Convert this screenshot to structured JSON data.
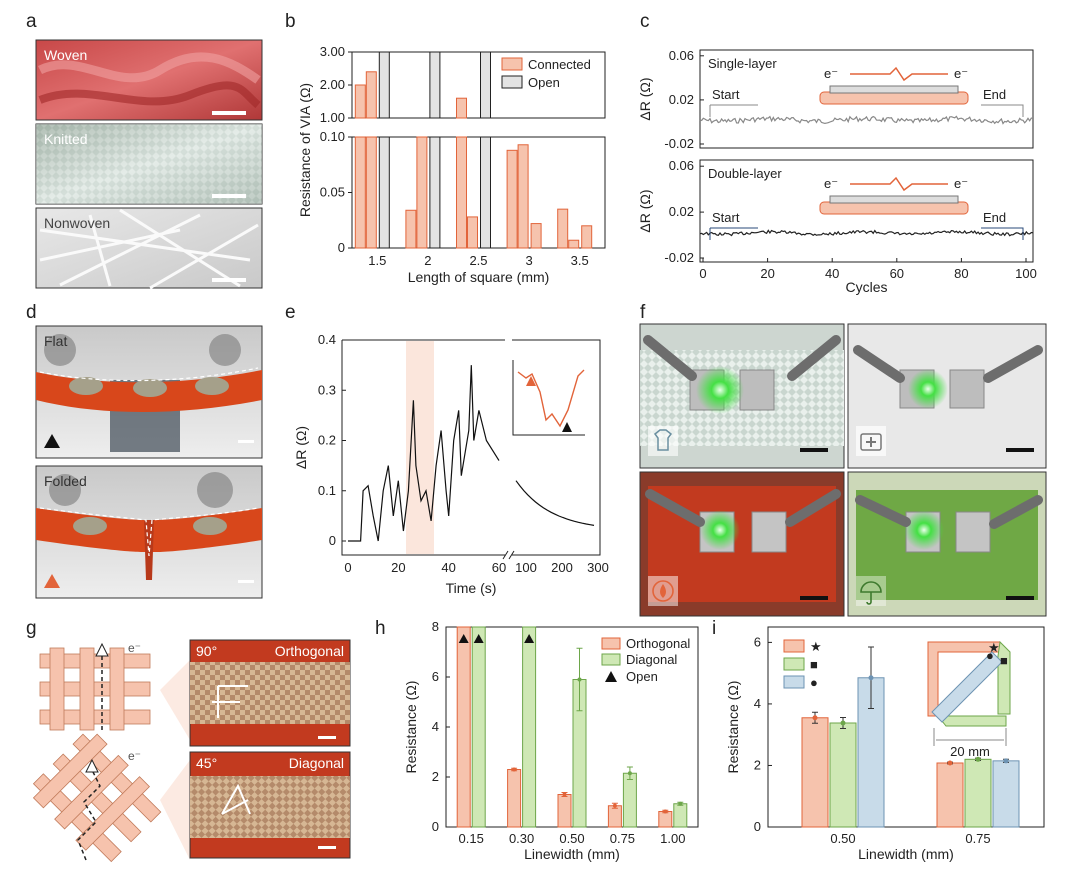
{
  "panel_labels": [
    "a",
    "b",
    "c",
    "d",
    "e",
    "f",
    "g",
    "h",
    "i"
  ],
  "panel_a": {
    "photos": [
      "Woven",
      "Knitted",
      "Nonwoven"
    ]
  },
  "panel_d": {
    "photos": [
      "Flat",
      "Folded"
    ]
  },
  "panel_g": {
    "angles": [
      "90°",
      "45°"
    ],
    "photos": [
      "Orthogonal",
      "Diagonal"
    ],
    "electron": "e⁻"
  },
  "colors": {
    "orange": "#f6c3ad",
    "orange_edge": "#e2643a",
    "green": "#cfe8b5",
    "green_edge": "#6da64a",
    "blue": "#c8dbe9",
    "blue_edge": "#6d93b3",
    "gray": "#e3e3e3"
  },
  "chart_data": [
    {
      "id": "b",
      "type": "bar",
      "categories": [
        "1.5",
        "2",
        "2.5",
        "3",
        "3.5"
      ],
      "series": [
        {
          "name": "Connected",
          "values": [
            [
              2.0,
              2.4
            ],
            [
              0.034,
              1.0
            ],
            [
              1.6,
              0.028
            ],
            [
              0.088,
              0.093
            ],
            [
              0.035,
              0.007
            ]
          ]
        },
        {
          "name": "Open",
          "values": [
            3.0,
            3.0,
            3.0,
            null,
            null
          ]
        }
      ],
      "extra_connected": [
        null,
        null,
        null,
        0.022,
        0.02
      ],
      "ylabel": "Resistance of VIA (Ω)",
      "xlabel": "Length of square (mm)",
      "yticks_low": [
        "0",
        "0.05",
        "0.10"
      ],
      "yticks_high": [
        "1.00",
        "2.00",
        "3.00"
      ],
      "axis_break": true,
      "legend": "top-right"
    },
    {
      "id": "c",
      "type": "line",
      "subplots": [
        {
          "label": "Single-layer",
          "start": "Start",
          "end": "End",
          "ylim": [
            -0.02,
            0.06
          ]
        },
        {
          "label": "Double-layer",
          "start": "Start",
          "end": "End",
          "ylim": [
            -0.02,
            0.06
          ]
        }
      ],
      "ylabel": "ΔR (Ω)",
      "xlabel": "Cycles",
      "yticks": [
        "0.06",
        "0.02",
        "-0.02"
      ],
      "xticks": [
        "0",
        "20",
        "40",
        "60",
        "80",
        "100"
      ],
      "electron": "e⁻"
    },
    {
      "id": "e",
      "type": "line",
      "ylabel": "ΔR (Ω)",
      "xlabel": "Time (s)",
      "yticks": [
        "0",
        "0.1",
        "0.2",
        "0.3",
        "0.4"
      ],
      "xticks_left": [
        "0",
        "10",
        "20",
        "30",
        "40",
        "50",
        "60"
      ],
      "xticks_right": [
        "100",
        "200",
        "300"
      ],
      "axis_break": true
    },
    {
      "id": "h",
      "type": "bar",
      "categories": [
        "0.15",
        "0.30",
        "0.50",
        "0.75",
        "1.00"
      ],
      "series": [
        {
          "name": "Orthogonal",
          "values": [
            8,
            2.3,
            1.3,
            0.85,
            0.62
          ]
        },
        {
          "name": "Diagonal",
          "values": [
            8,
            8,
            5.9,
            2.15,
            0.93
          ]
        },
        {
          "name": "Open"
        }
      ],
      "errors_orthogonal": [
        0,
        0.05,
        0.08,
        0.1,
        0.05
      ],
      "errors_diagonal": [
        0,
        0,
        1.25,
        0.25,
        0.06
      ],
      "ylabel": "Resistance (Ω)",
      "xlabel": "Linewidth (mm)",
      "yticks": [
        "0",
        "2",
        "4",
        "6",
        "8"
      ],
      "ylim": [
        0,
        8
      ],
      "legend": "top-right"
    },
    {
      "id": "i",
      "type": "bar",
      "categories": [
        "0.50",
        "0.75"
      ],
      "series": [
        {
          "name": "★",
          "values": [
            3.55,
            2.08
          ]
        },
        {
          "name": "■",
          "values": [
            3.38,
            2.2
          ]
        },
        {
          "name": "●",
          "values": [
            4.85,
            2.15
          ]
        }
      ],
      "errors": [
        [
          0.18,
          0.03
        ],
        [
          0.18,
          0.04
        ],
        [
          1.0,
          0.05
        ]
      ],
      "ylabel": "Resistance (Ω)",
      "xlabel": "Linewidth (mm)",
      "yticks": [
        "0",
        "2",
        "4",
        "6"
      ],
      "ylim": [
        0,
        6.5
      ],
      "inset_dim": "20 mm"
    }
  ]
}
